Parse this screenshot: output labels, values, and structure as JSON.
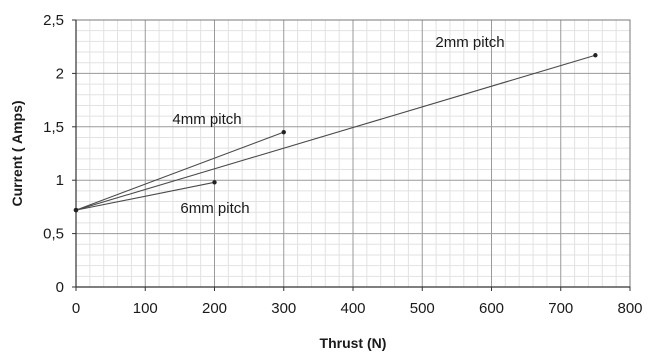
{
  "chart_data": {
    "type": "line",
    "title": "",
    "xlabel": "Thrust (N)",
    "ylabel": "Current ( Amps)",
    "xlim": [
      0,
      800
    ],
    "ylim": [
      0,
      2.5
    ],
    "grid": true,
    "x_ticks": [
      "0",
      "100",
      "200",
      "300",
      "400",
      "500",
      "600",
      "700",
      "800"
    ],
    "y_ticks": [
      "0",
      "0,5",
      "1",
      "1,5",
      "2",
      "2,5"
    ],
    "series": [
      {
        "name": "2mm pitch",
        "points": [
          [
            0,
            0.72
          ],
          [
            750,
            2.17
          ]
        ]
      },
      {
        "name": "4mm pitch",
        "points": [
          [
            0,
            0.72
          ],
          [
            300,
            1.45
          ]
        ]
      },
      {
        "name": "6mm pitch",
        "points": [
          [
            0,
            0.72
          ],
          [
            200,
            0.98
          ]
        ]
      }
    ]
  }
}
